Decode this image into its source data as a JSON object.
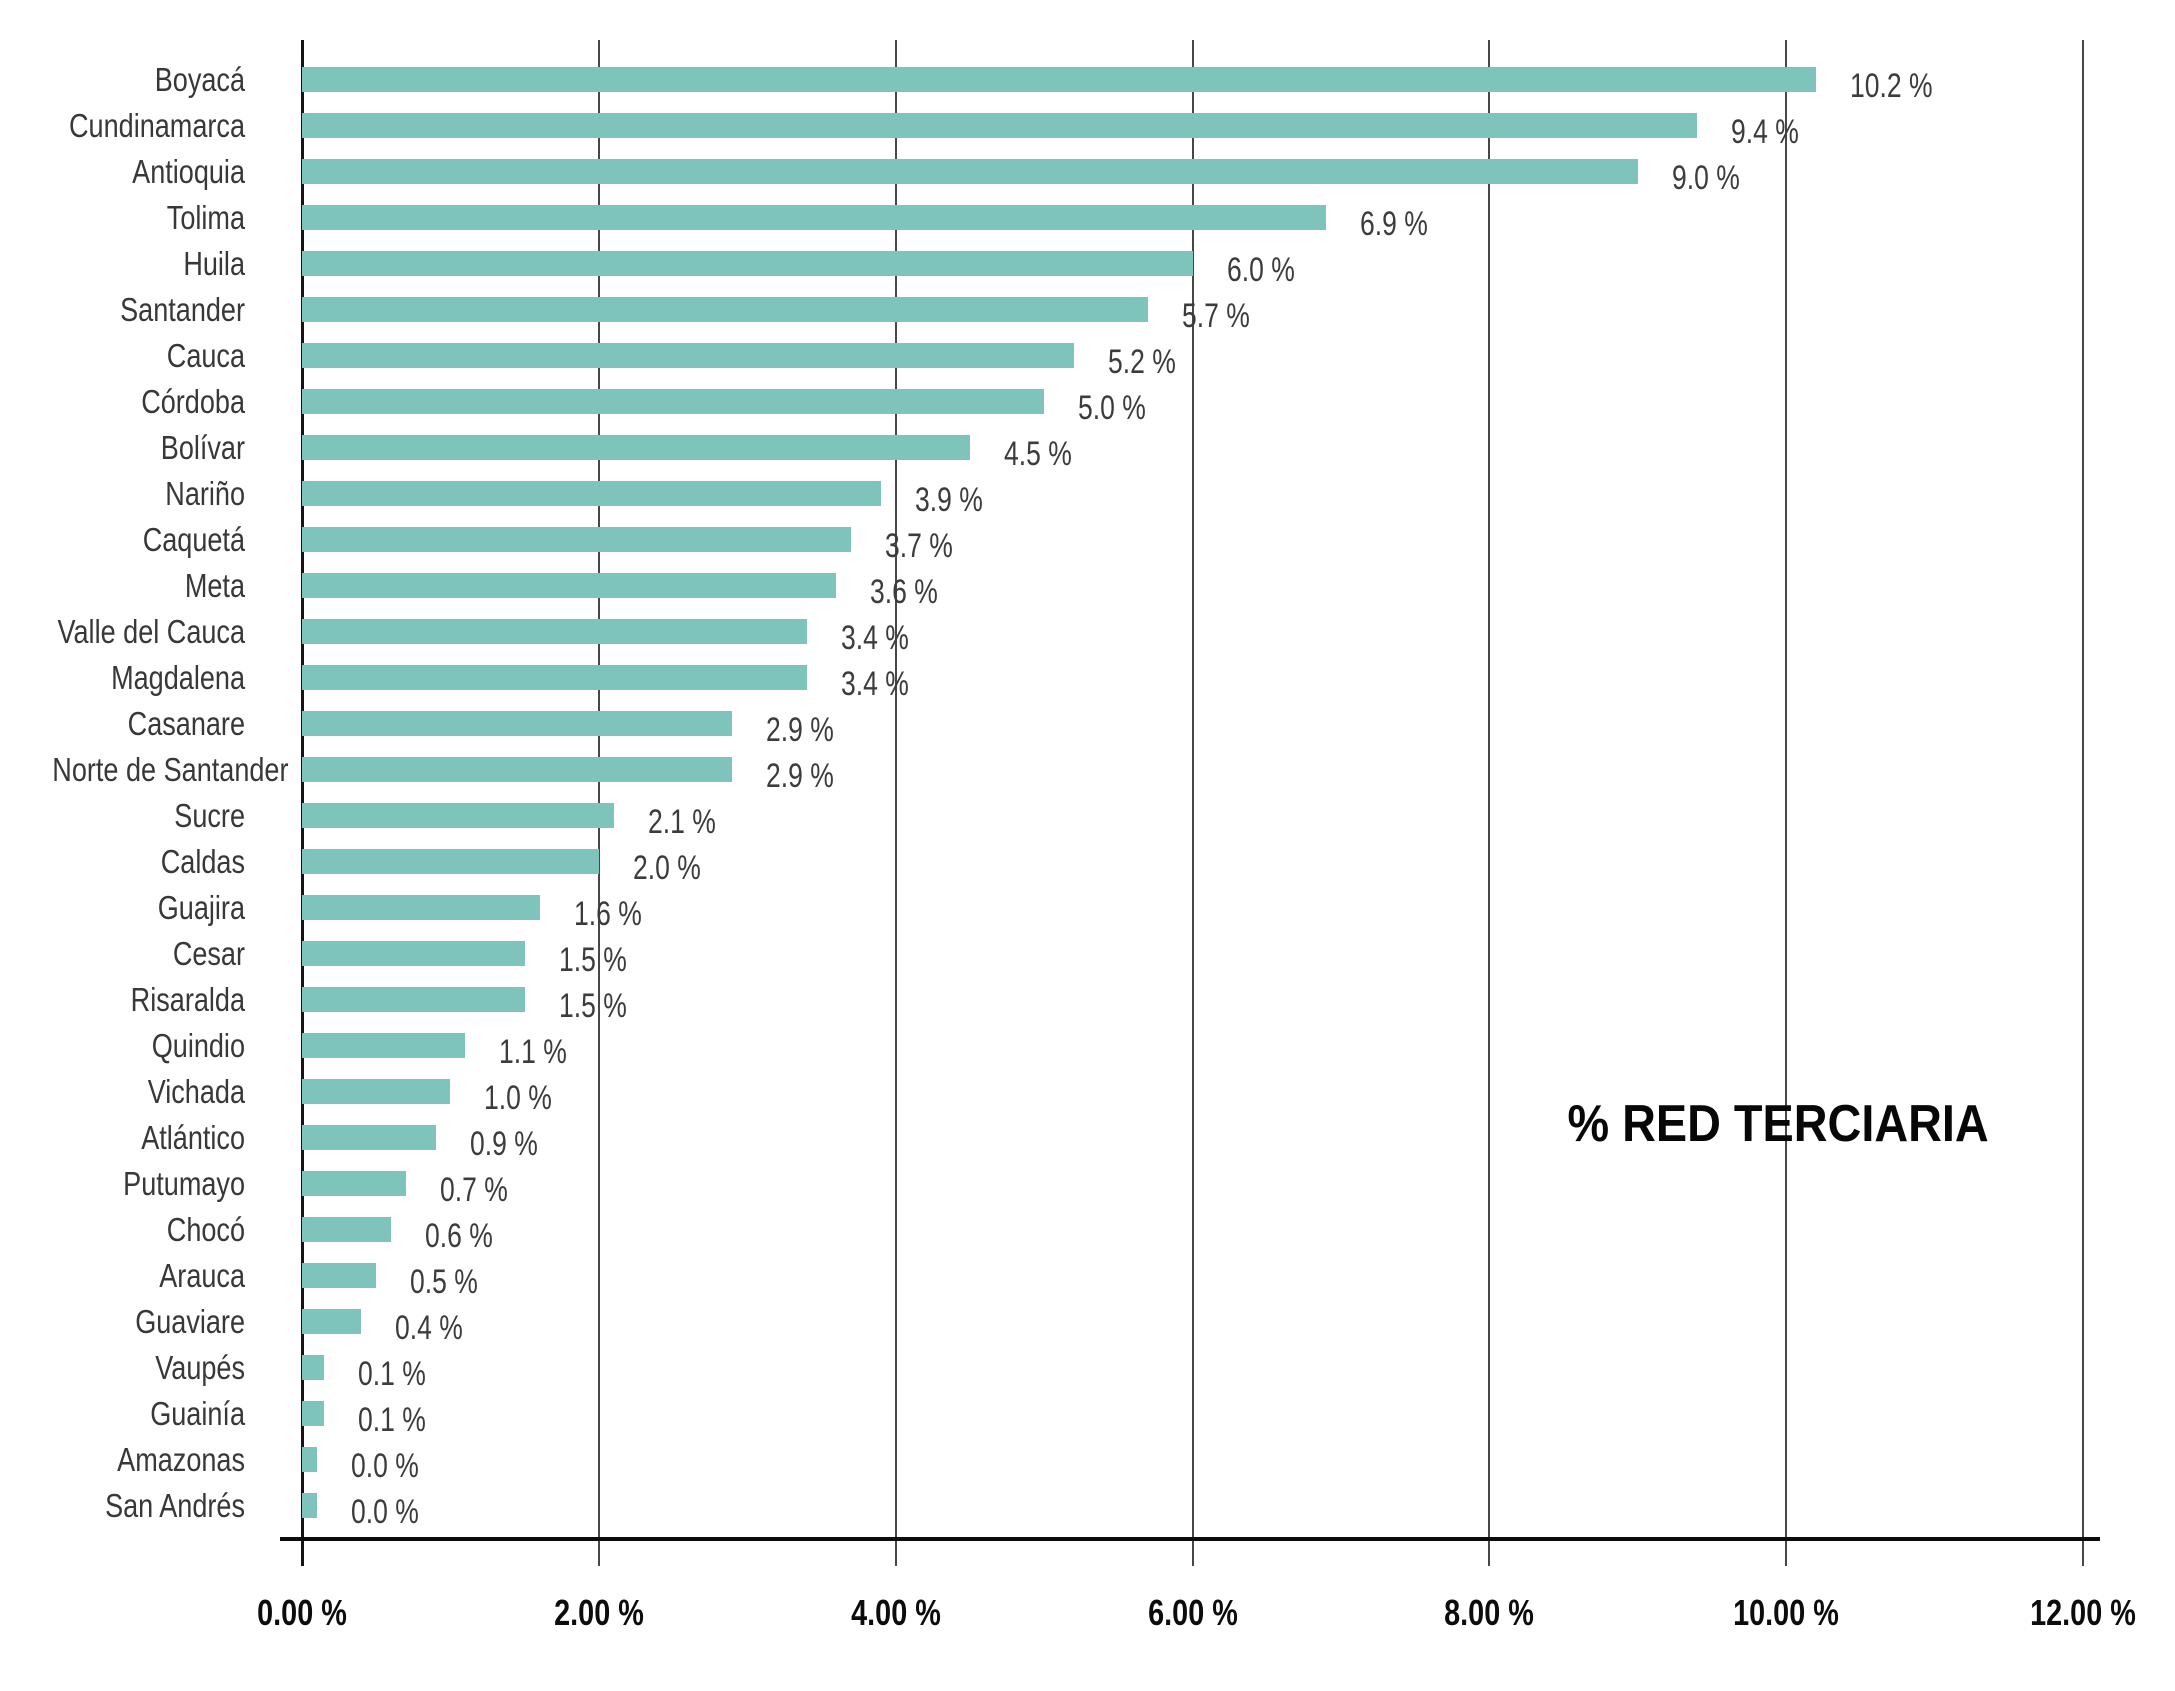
{
  "chart_data": {
    "type": "bar",
    "orientation": "horizontal",
    "title": "% RED TERCIARIA",
    "xlabel": "",
    "ylabel": "",
    "xlim": [
      0,
      12
    ],
    "grid": true,
    "legend": "none",
    "bar_color": "#7ec4bd",
    "text_color": "#3c3c3c",
    "categories": [
      "Boyacá",
      "Cundinamarca",
      "Antioquia",
      "Tolima",
      "Huila",
      "Santander",
      "Cauca",
      "Córdoba",
      "Bolívar",
      "Nariño",
      "Caquetá",
      "Meta",
      "Valle del Cauca",
      "Magdalena",
      "Casanare",
      "Norte de Santander",
      "Sucre",
      "Caldas",
      "Guajira",
      "Cesar",
      "Risaralda",
      "Quindio",
      "Vichada",
      "Atlántico",
      "Putumayo",
      "Chocó",
      "Arauca",
      "Guaviare",
      "Vaupés",
      "Guainía",
      "Amazonas",
      "San Andrés"
    ],
    "values": [
      10.2,
      9.4,
      9.0,
      6.9,
      6.0,
      5.7,
      5.2,
      5.0,
      4.5,
      3.9,
      3.7,
      3.6,
      3.4,
      3.4,
      2.9,
      2.9,
      2.1,
      2.0,
      1.6,
      1.5,
      1.5,
      1.1,
      1.0,
      0.9,
      0.7,
      0.6,
      0.5,
      0.4,
      0.1,
      0.1,
      0.0,
      0.0
    ],
    "value_labels": [
      "10.2 %",
      "9.4 %",
      "9.0 %",
      "6.9 %",
      "6.0 %",
      "5.7 %",
      "5.2 %",
      "5.0 %",
      "4.5 %",
      "3.9 %",
      "3.7 %",
      "3.6 %",
      "3.4 %",
      "3.4 %",
      "2.9 %",
      "2.9 %",
      "2.1 %",
      "2.0 %",
      "1.6 %",
      "1.5 %",
      "1.5 %",
      "1.1 %",
      "1.0 %",
      "0.9 %",
      "0.7 %",
      "0.6 %",
      "0.5 %",
      "0.4 %",
      "0.1 %",
      "0.1 %",
      "0.0 %",
      "0.0 %"
    ],
    "x_ticks": [
      "0.00 %",
      "2.00 %",
      "4.00 %",
      "6.00 %",
      "8.00 %",
      "10.00 %",
      "12.00 %"
    ]
  }
}
